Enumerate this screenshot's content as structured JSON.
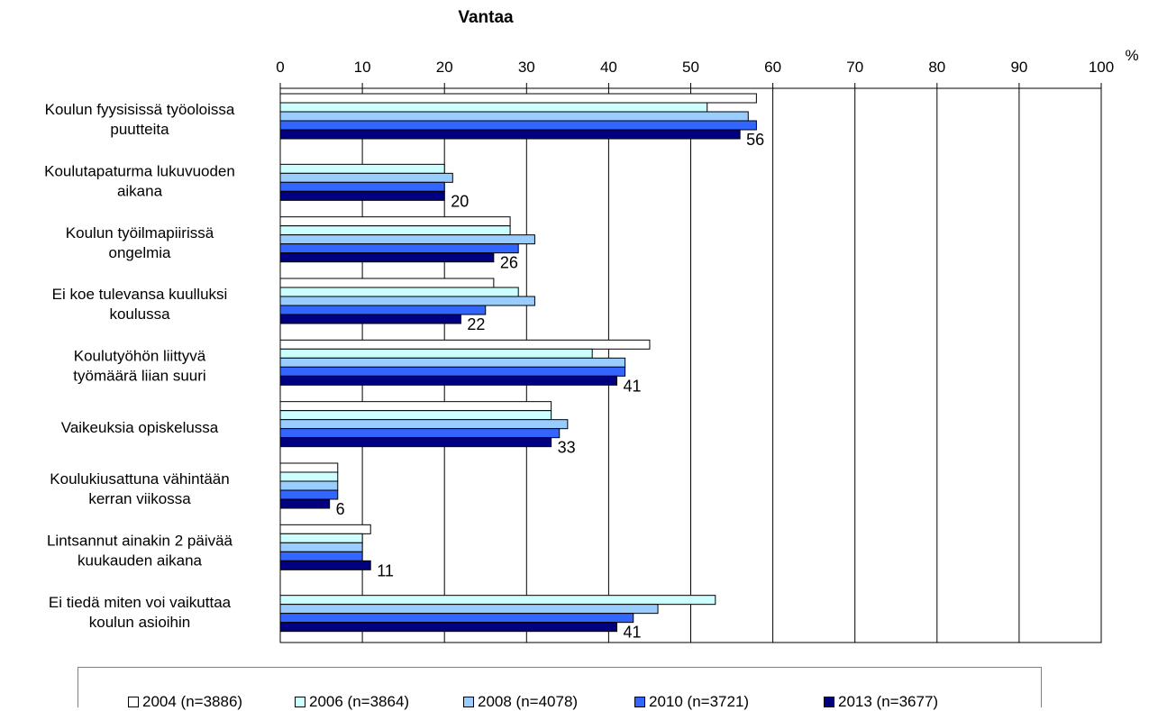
{
  "chart_data": {
    "type": "bar",
    "orientation": "horizontal",
    "title": "Vantaa",
    "unit_label": "%",
    "xlim": [
      0,
      100
    ],
    "x_ticks": [
      0,
      10,
      20,
      30,
      40,
      50,
      60,
      70,
      80,
      90,
      100
    ],
    "grid": "vertical",
    "legend_position": "bottom",
    "categories": [
      [
        "Koulun fyysisissä työoloissa",
        "puutteita"
      ],
      [
        "Koulutapaturma lukuvuoden",
        "aikana"
      ],
      [
        "Koulun työilmapiirissä",
        "ongelmia"
      ],
      [
        "Ei koe tulevansa kuulluksi",
        "koulussa"
      ],
      [
        "Koulutyöhön liittyvä",
        "työmäärä liian suuri"
      ],
      [
        "Vaikeuksia opiskelussa"
      ],
      [
        "Koulukiusattuna vähintään",
        "kerran viikossa"
      ],
      [
        "Lintsannut ainakin 2 päivää",
        "kuukauden aikana"
      ],
      [
        "Ei tiedä miten voi vaikuttaa",
        "koulun asioihin"
      ]
    ],
    "series": [
      {
        "name": "2004 (n=3886)",
        "color": "#ffffff",
        "values": [
          58,
          null,
          28,
          26,
          45,
          33,
          7,
          11,
          null
        ]
      },
      {
        "name": "2006 (n=3864)",
        "color": "#ccffff",
        "values": [
          52,
          20,
          28,
          29,
          38,
          33,
          7,
          10,
          53
        ]
      },
      {
        "name": "2008 (n=4078)",
        "color": "#99ccff",
        "values": [
          57,
          21,
          31,
          31,
          42,
          35,
          7,
          10,
          46
        ]
      },
      {
        "name": "2010 (n=3721)",
        "color": "#3366ff",
        "values": [
          58,
          20,
          29,
          25,
          42,
          34,
          7,
          10,
          43
        ]
      },
      {
        "name": "2013 (n=3677)",
        "color": "#000080",
        "values": [
          56,
          20,
          26,
          22,
          41,
          33,
          6,
          11,
          41
        ]
      }
    ],
    "data_labels": [
      56,
      20,
      26,
      22,
      41,
      33,
      6,
      11,
      41
    ]
  }
}
